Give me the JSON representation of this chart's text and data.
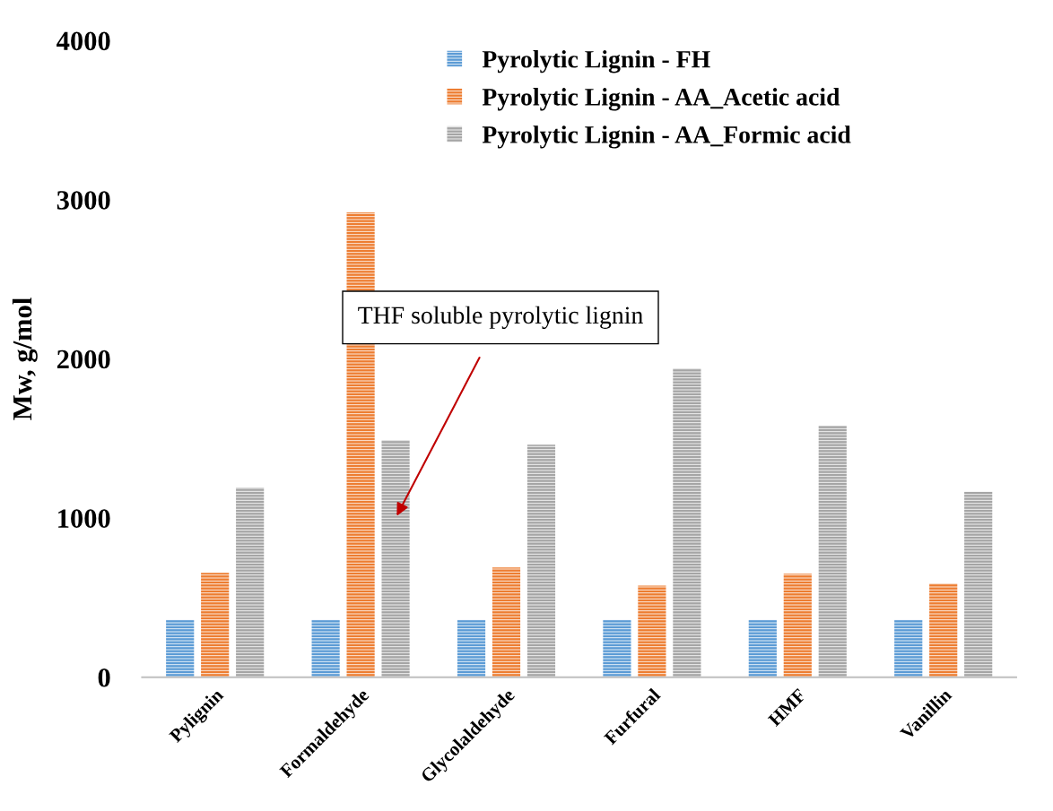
{
  "chart_data": {
    "type": "bar",
    "ylabel": "Mw, g/mol",
    "categories": [
      "Pylignin",
      "Formaldehyde",
      "Glycolaldehyde",
      "Furfural",
      "HMF",
      "Vanillin"
    ],
    "series": [
      {
        "name": "Pyrolytic Lignin - FH",
        "color": "#5b9bd5",
        "values": [
          360,
          360,
          360,
          360,
          360,
          360
        ]
      },
      {
        "name": "Pyrolytic Lignin - AA_Acetic acid",
        "color": "#ed7d31",
        "values": [
          655,
          2920,
          690,
          575,
          650,
          590
        ]
      },
      {
        "name": "Pyrolytic Lignin - AA_Formic acid",
        "color": "#a5a5a5",
        "values": [
          1190,
          1490,
          1460,
          1940,
          1580,
          1165
        ]
      }
    ],
    "ylim": [
      0,
      4000
    ],
    "yticks": [
      0,
      1000,
      2000,
      3000,
      4000
    ],
    "grid": false,
    "legend": "top",
    "annotations": [
      "THF soluble pyrolytic lignin"
    ]
  }
}
